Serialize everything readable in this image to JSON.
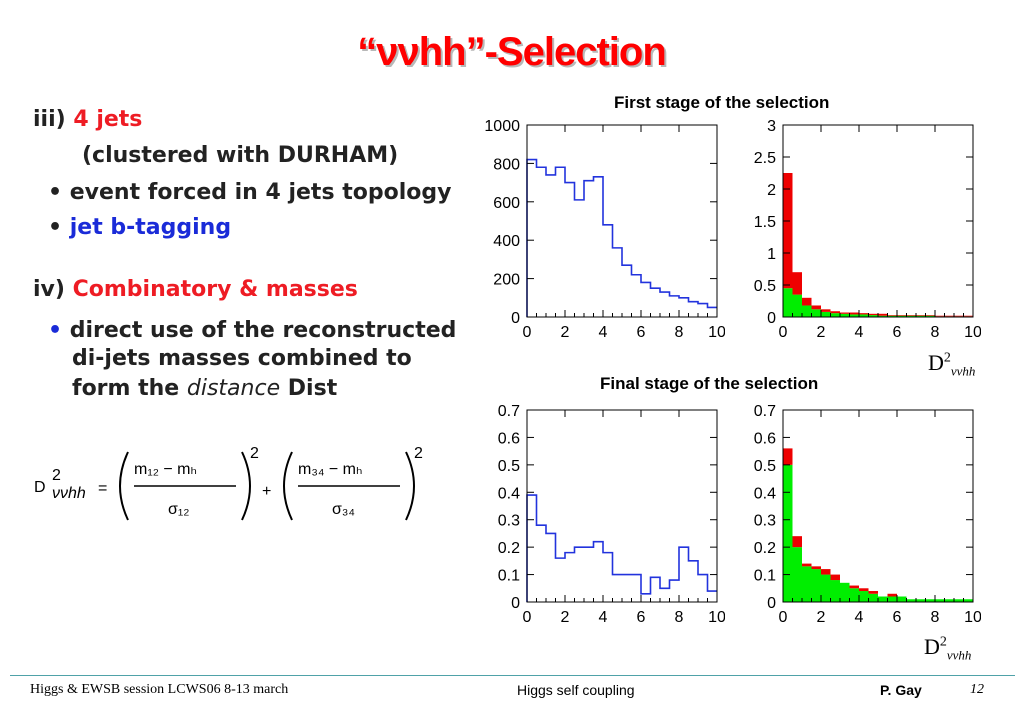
{
  "title": "“ννhh”-Selection",
  "bullets": {
    "iii_num": "iii)",
    "iii_head": "4 jets",
    "iii_sub": "(clustered with DURHAM)",
    "b1": "• event forced in 4 jets topology",
    "b2_dot": "•",
    "b2": "jet b-tagging",
    "iv_num": "iv)",
    "iv_head": "Combinatory & masses",
    "b3_dot": "•",
    "b3_l1": "direct use of the reconstructed",
    "b3_l2": "di-jets masses combined to",
    "b3_l3a": "form the",
    "b3_l3b": "distance",
    "b3_l3c": "Dist"
  },
  "formula": {
    "lhs": "D",
    "lhs_sup": "2",
    "lhs_sub": "ννhh",
    "eq": "=",
    "plus": "+",
    "n1": "m₁₂ − mₕ",
    "d1": "σ₁₂",
    "n2": "m₃₄ − mₕ",
    "d2": "σ₃₄",
    "exp": "2"
  },
  "labels": {
    "first_stage": "First stage of the selection",
    "final_stage": "Final stage of the selection",
    "d_main": "D",
    "d_sup": "2",
    "d_sub": "ννhh"
  },
  "footer": {
    "left": "Higgs & EWSB session LCWS06 8-13 march",
    "center": "Higgs self coupling",
    "author": "P.  Gay",
    "page": "12"
  },
  "colors": {
    "title": "#ff0000",
    "blue_line": "#2233dd",
    "red_fill": "#ee0000",
    "green_fill": "#00ee00"
  },
  "chart_data": [
    {
      "type": "bar",
      "style": "step-histogram",
      "x_edges": [
        0,
        0.5,
        1,
        1.5,
        2,
        2.5,
        3,
        3.5,
        4,
        4.5,
        5,
        5.5,
        6,
        6.5,
        7,
        7.5,
        8,
        8.5,
        9,
        9.5,
        10
      ],
      "series": [
        {
          "values": [
            820,
            780,
            740,
            780,
            700,
            610,
            710,
            730,
            480,
            360,
            270,
            220,
            180,
            150,
            130,
            110,
            100,
            80,
            70,
            50
          ]
        }
      ],
      "xlim": [
        0,
        10
      ],
      "ylim": [
        0,
        1000
      ],
      "xticks": [
        0,
        2,
        4,
        6,
        8,
        10
      ],
      "yticks": [
        0,
        200,
        400,
        600,
        800,
        1000
      ],
      "ytick_labels": [
        "0",
        "200",
        "400",
        "600",
        "800",
        "1000"
      ]
    },
    {
      "type": "bar",
      "style": "stacked-histogram",
      "x_edges": [
        0,
        0.5,
        1,
        1.5,
        2,
        2.5,
        3,
        3.5,
        4,
        4.5,
        5,
        5.5,
        6,
        6.5,
        7,
        7.5,
        8,
        8.5,
        9,
        9.5,
        10
      ],
      "series": [
        {
          "color": "#00ee00",
          "values": [
            0.45,
            0.35,
            0.18,
            0.12,
            0.08,
            0.06,
            0.05,
            0.04,
            0.04,
            0.03,
            0.02,
            0.02,
            0.02,
            0.02,
            0.02,
            0.02,
            0.01,
            0.01,
            0.01,
            0.01
          ]
        },
        {
          "color": "#ee0000",
          "values": [
            1.8,
            0.35,
            0.12,
            0.06,
            0.04,
            0.03,
            0.02,
            0.03,
            0.02,
            0.02,
            0.03,
            0.01,
            0.01,
            0.01,
            0.01,
            0.01,
            0.01,
            0.01,
            0.01,
            0.01
          ]
        }
      ],
      "xlim": [
        0,
        10
      ],
      "ylim": [
        0,
        3
      ],
      "xticks": [
        0,
        2,
        4,
        6,
        8,
        10
      ],
      "yticks": [
        0,
        0.5,
        1,
        1.5,
        2,
        2.5,
        3
      ],
      "ytick_labels": [
        "0",
        "0.5",
        "1",
        "1.5",
        "2",
        "2.5",
        "3"
      ]
    },
    {
      "type": "bar",
      "style": "step-histogram",
      "x_edges": [
        0,
        0.5,
        1,
        1.5,
        2,
        2.5,
        3,
        3.5,
        4,
        4.5,
        5,
        5.5,
        6,
        6.5,
        7,
        7.5,
        8,
        8.5,
        9,
        9.5,
        10
      ],
      "series": [
        {
          "values": [
            0.39,
            0.28,
            0.25,
            0.16,
            0.18,
            0.2,
            0.2,
            0.22,
            0.18,
            0.1,
            0.1,
            0.1,
            0.03,
            0.09,
            0.05,
            0.08,
            0.2,
            0.15,
            0.1,
            0.04
          ]
        }
      ],
      "xlim": [
        0,
        10
      ],
      "ylim": [
        0,
        0.7
      ],
      "xticks": [
        0,
        2,
        4,
        6,
        8,
        10
      ],
      "yticks": [
        0,
        0.1,
        0.2,
        0.3,
        0.4,
        0.5,
        0.6,
        0.7
      ],
      "ytick_labels": [
        "0",
        "0.1",
        "0.2",
        "0.3",
        "0.4",
        "0.5",
        "0.6",
        "0.7"
      ]
    },
    {
      "type": "bar",
      "style": "stacked-histogram",
      "x_edges": [
        0,
        0.5,
        1,
        1.5,
        2,
        2.5,
        3,
        3.5,
        4,
        4.5,
        5,
        5.5,
        6,
        6.5,
        7,
        7.5,
        8,
        8.5,
        9,
        9.5,
        10
      ],
      "series": [
        {
          "color": "#00ee00",
          "values": [
            0.5,
            0.2,
            0.13,
            0.12,
            0.1,
            0.08,
            0.07,
            0.05,
            0.04,
            0.03,
            0.02,
            0.02,
            0.02,
            0.01,
            0.01,
            0.01,
            0.01,
            0.01,
            0.01,
            0.01
          ]
        },
        {
          "color": "#ee0000",
          "values": [
            0.06,
            0.04,
            0.01,
            0.01,
            0.02,
            0.02,
            0.0,
            0.01,
            0.01,
            0.01,
            0.0,
            0.01,
            0.0,
            0.0,
            0.0,
            0.0,
            0.0,
            0.0,
            0.0,
            0.0
          ]
        }
      ],
      "xlim": [
        0,
        10
      ],
      "ylim": [
        0,
        0.7
      ],
      "xticks": [
        0,
        2,
        4,
        6,
        8,
        10
      ],
      "yticks": [
        0,
        0.1,
        0.2,
        0.3,
        0.4,
        0.5,
        0.6,
        0.7
      ],
      "ytick_labels": [
        "0",
        "0.1",
        "0.2",
        "0.3",
        "0.4",
        "0.5",
        "0.6",
        "0.7"
      ]
    }
  ]
}
